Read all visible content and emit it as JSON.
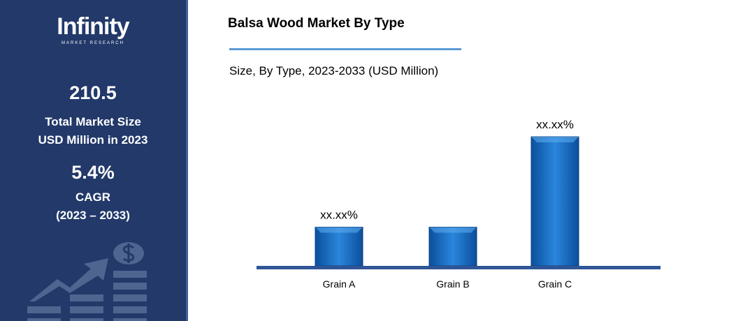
{
  "sidebar": {
    "logo": {
      "name": "Infinity",
      "tagline": "MARKET RESEARCH"
    },
    "market_size": "210.5",
    "market_size_label_1": "Total Market Size",
    "market_size_label_2": "USD Million in 2023",
    "cagr": "5.4%",
    "cagr_label": "CAGR",
    "cagr_period": "(2023 – 2033)",
    "background": "#22396a",
    "icon": "growth-chart-dollar-icon"
  },
  "chart_data": {
    "type": "bar",
    "title": "Balsa Wood Market By Type",
    "subtitle": "Size, By Type, 2023-2033 (USD Million)",
    "categories": [
      "Grain A",
      "Grain B",
      "Grain C"
    ],
    "values": [
      30,
      30,
      100
    ],
    "data_labels": [
      "xx.xx%",
      "",
      "xx.xx%"
    ],
    "bar_color": "#1f77d0",
    "grid": false
  }
}
